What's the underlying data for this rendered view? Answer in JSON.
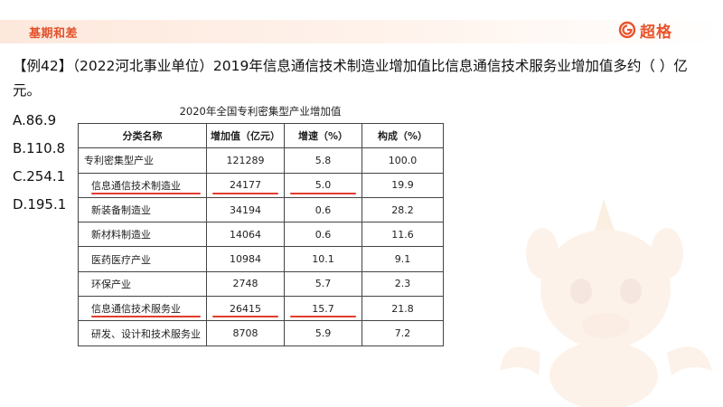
{
  "header": {
    "section_tag": "基期和差",
    "brand_name": "超格",
    "accent_color": "#e2502a"
  },
  "question": {
    "text": "【例42】（2022河北事业单位）2019年信息通信技术制造业增加值比信息通信技术服务业增加值多约（  ）亿元。"
  },
  "options": [
    {
      "label": "A.86.9"
    },
    {
      "label": "B.110.8"
    },
    {
      "label": "C.254.1"
    },
    {
      "label": "D.195.1"
    }
  ],
  "table": {
    "title": "2020年全国专利密集型产业增加值",
    "headers": [
      "分类名称",
      "增加值（亿元）",
      "增速（%）",
      "构成（%）"
    ],
    "rows": [
      {
        "name": "专利密集型产业",
        "value": "121289",
        "growth": "5.8",
        "share": "100.0"
      },
      {
        "name": "信息通信技术制造业",
        "value": "24177",
        "growth": "5.0",
        "share": "19.9"
      },
      {
        "name": "新装备制造业",
        "value": "34194",
        "growth": "0.6",
        "share": "28.2"
      },
      {
        "name": "新材料制造业",
        "value": "14064",
        "growth": "0.6",
        "share": "11.6"
      },
      {
        "name": "医药医疗产业",
        "value": "10984",
        "growth": "10.1",
        "share": "9.1"
      },
      {
        "name": "环保产业",
        "value": "2748",
        "growth": "5.7",
        "share": "2.3"
      },
      {
        "name": "信息通信技术服务业",
        "value": "26415",
        "growth": "15.7",
        "share": "21.8"
      },
      {
        "name": "研发、设计和技术服务业",
        "value": "8708",
        "growth": "5.9",
        "share": "7.2"
      }
    ],
    "highlight_color": "#e23b2e"
  },
  "icons": {
    "brand_logo": "brand-logo-icon",
    "mascot": "unicorn-mascot-icon"
  }
}
